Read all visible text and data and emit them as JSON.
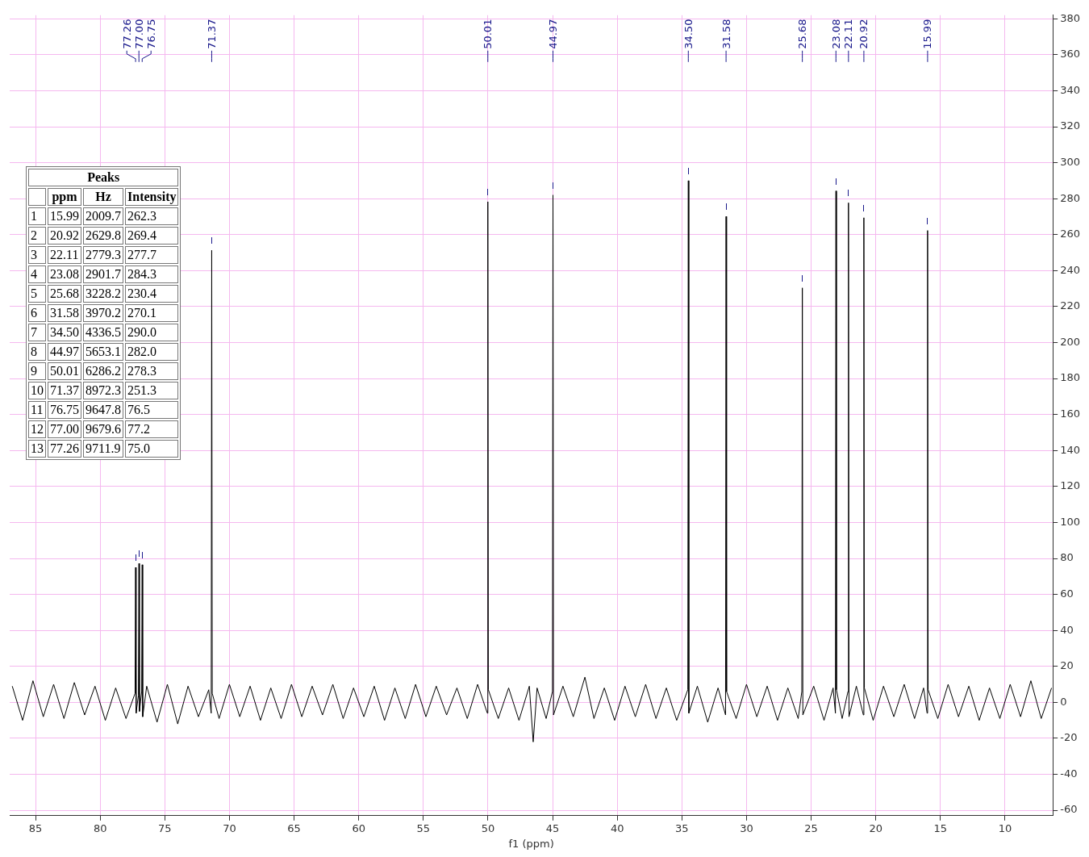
{
  "chart_data": [
    {
      "type": "line",
      "xlabel": "f1 (ppm)",
      "color": "#000000",
      "x": [
        86.8,
        86.0,
        85.2,
        84.4,
        83.6,
        82.8,
        82.0,
        81.2,
        80.4,
        79.6,
        78.8,
        78.0,
        77.3,
        77.26,
        77.22,
        77.04,
        77.0,
        76.96,
        76.79,
        76.75,
        76.71,
        76.4,
        75.6,
        74.8,
        74.0,
        73.2,
        72.4,
        71.6,
        71.41,
        71.37,
        71.33,
        70.8,
        70.0,
        69.2,
        68.4,
        67.6,
        66.8,
        66.0,
        65.2,
        64.4,
        63.6,
        62.8,
        62.0,
        61.2,
        60.4,
        59.6,
        58.8,
        58.0,
        57.2,
        56.4,
        55.6,
        54.8,
        54.0,
        53.2,
        52.4,
        51.6,
        50.8,
        50.05,
        50.01,
        49.97,
        49.2,
        48.4,
        47.6,
        46.8,
        46.5,
        46.2,
        45.5,
        45.01,
        44.97,
        44.93,
        44.2,
        43.4,
        42.5,
        41.8,
        41.0,
        40.2,
        39.4,
        38.6,
        37.8,
        37.0,
        36.2,
        35.4,
        34.54,
        34.5,
        34.46,
        33.8,
        33.0,
        32.2,
        31.62,
        31.58,
        31.54,
        30.8,
        30.0,
        29.2,
        28.4,
        27.6,
        26.8,
        26.0,
        25.72,
        25.68,
        25.64,
        24.8,
        24.0,
        23.3,
        23.12,
        23.08,
        23.04,
        22.6,
        22.15,
        22.11,
        22.07,
        21.5,
        20.96,
        20.92,
        20.88,
        20.2,
        19.4,
        18.6,
        17.8,
        17.0,
        16.3,
        16.03,
        15.99,
        15.95,
        15.2,
        14.4,
        13.6,
        12.8,
        12.0,
        11.2,
        10.4,
        9.6,
        8.8,
        8.0,
        7.2,
        6.4
      ],
      "values": [
        9,
        -10,
        12,
        -8,
        10,
        -9,
        11,
        -7,
        9,
        -10,
        8,
        -9,
        5,
        75.0,
        -6,
        4,
        77.2,
        -5,
        6,
        76.5,
        -8,
        9,
        -11,
        10,
        -12,
        9,
        -8,
        7,
        -6,
        251.3,
        5,
        -9,
        10,
        -8,
        9,
        -10,
        8,
        -9,
        10,
        -8,
        9,
        -7,
        10,
        -9,
        8,
        -8,
        9,
        -10,
        8,
        -9,
        10,
        -8,
        9,
        -7,
        8,
        -9,
        10,
        -6,
        278.3,
        7,
        -9,
        8,
        -10,
        9,
        -22,
        8,
        -9,
        6,
        282.0,
        -7,
        9,
        -8,
        14,
        -9,
        8,
        -10,
        9,
        -8,
        10,
        -9,
        8,
        -10,
        7,
        290.0,
        -6,
        9,
        -11,
        8,
        -7,
        270.1,
        6,
        -9,
        10,
        -8,
        9,
        -10,
        8,
        -9,
        6,
        230.4,
        -7,
        9,
        -10,
        8,
        -6,
        284.3,
        7,
        -9,
        6,
        277.7,
        -8,
        9,
        -7,
        269.4,
        8,
        -10,
        9,
        -8,
        10,
        -9,
        8,
        -6,
        262.3,
        7,
        -9,
        10,
        -8,
        9,
        -10,
        8,
        -9,
        10,
        -8,
        12,
        -9,
        8
      ],
      "xlim": [
        87,
        6.3
      ],
      "ylim": [
        -63,
        382
      ],
      "xticks": [
        85,
        80,
        75,
        70,
        65,
        60,
        55,
        50,
        45,
        40,
        35,
        30,
        25,
        20,
        15,
        10
      ],
      "yticks": [
        -60,
        -40,
        -20,
        0,
        20,
        40,
        60,
        80,
        100,
        120,
        140,
        160,
        180,
        200,
        220,
        240,
        260,
        280,
        300,
        320,
        340,
        360,
        380
      ],
      "grid": true,
      "annotations": [
        {
          "text": "77.26",
          "x": 77.26
        },
        {
          "text": "77.00",
          "x": 77.0
        },
        {
          "text": "76.75",
          "x": 76.75
        },
        {
          "text": "71.37",
          "x": 71.37
        },
        {
          "text": "50.01",
          "x": 50.01
        },
        {
          "text": "44.97",
          "x": 44.97
        },
        {
          "text": "34.50",
          "x": 34.5
        },
        {
          "text": "31.58",
          "x": 31.58
        },
        {
          "text": "25.68",
          "x": 25.68
        },
        {
          "text": "23.08",
          "x": 23.08
        },
        {
          "text": "22.11",
          "x": 22.11
        },
        {
          "text": "20.92",
          "x": 20.92
        },
        {
          "text": "15.99",
          "x": 15.99
        }
      ]
    },
    {
      "type": "heatmap",
      "title": "Peaks",
      "categories": [
        "ppm",
        "Hz",
        "Intensity"
      ],
      "y_categories": [
        "1",
        "2",
        "3",
        "4",
        "5",
        "6",
        "7",
        "8",
        "9",
        "10",
        "11",
        "12",
        "13"
      ],
      "cells": [
        [
          15.99,
          2009.7,
          262.3
        ],
        [
          20.92,
          2629.8,
          269.4
        ],
        [
          22.11,
          2779.3,
          277.7
        ],
        [
          23.08,
          2901.7,
          284.3
        ],
        [
          25.68,
          3228.2,
          230.4
        ],
        [
          31.58,
          3970.2,
          270.1
        ],
        [
          34.5,
          4336.5,
          290.0
        ],
        [
          44.97,
          5653.1,
          282.0
        ],
        [
          50.01,
          6286.2,
          278.3
        ],
        [
          71.37,
          8972.3,
          251.3
        ],
        [
          76.75,
          9647.8,
          76.5
        ],
        [
          77.0,
          9679.6,
          77.2
        ],
        [
          77.26,
          9711.9,
          75.0
        ]
      ],
      "cell_labels": [
        [
          "15.99",
          "2009.7",
          "262.3"
        ],
        [
          "20.92",
          "2629.8",
          "269.4"
        ],
        [
          "22.11",
          "2779.3",
          "277.7"
        ],
        [
          "23.08",
          "2901.7",
          "284.3"
        ],
        [
          "25.68",
          "3228.2",
          "230.4"
        ],
        [
          "31.58",
          "3970.2",
          "270.1"
        ],
        [
          "34.50",
          "4336.5",
          "290.0"
        ],
        [
          "44.97",
          "5653.1",
          "282.0"
        ],
        [
          "50.01",
          "6286.2",
          "278.3"
        ],
        [
          "71.37",
          "8972.3",
          "251.3"
        ],
        [
          "76.75",
          "9647.8",
          "76.5"
        ],
        [
          "77.00",
          "9679.6",
          "77.2"
        ],
        [
          "77.26",
          "9711.9",
          "75.0"
        ]
      ]
    }
  ]
}
